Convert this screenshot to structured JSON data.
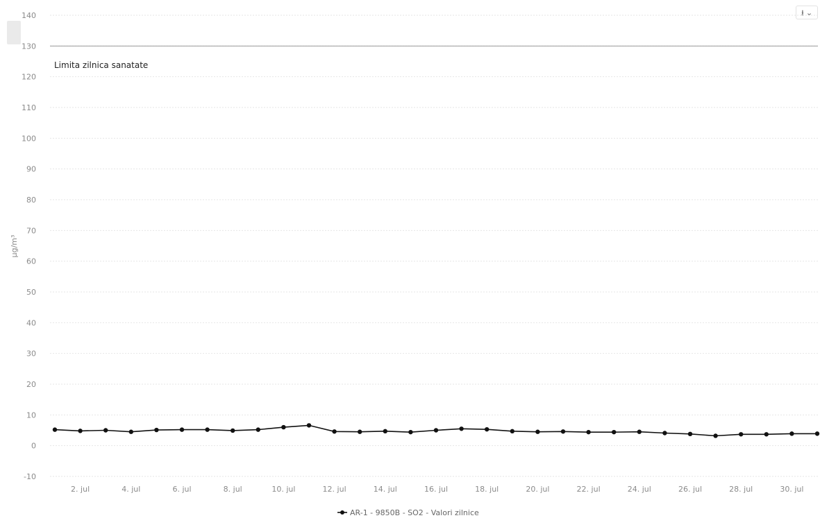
{
  "chart_data": {
    "type": "line",
    "title": "",
    "xlabel": "",
    "ylabel": "µg/m³",
    "ylim": [
      -10,
      140
    ],
    "yticks": [
      -10,
      0,
      10,
      20,
      30,
      40,
      50,
      60,
      70,
      80,
      90,
      100,
      110,
      120,
      130,
      140
    ],
    "xtick_labels": [
      "2. jul",
      "4. jul",
      "6. jul",
      "8. jul",
      "10. jul",
      "12. jul",
      "14. jul",
      "16. jul",
      "18. jul",
      "20. jul",
      "22. jul",
      "24. jul",
      "26. jul",
      "28. jul",
      "30. jul"
    ],
    "grid": true,
    "legend_position": "bottom-center",
    "plot_lines": [
      {
        "label": "Limita zilnica sanatate",
        "value": 125
      }
    ],
    "series": [
      {
        "name": "AR-1 - 9850B - SO2 - Valori zilnice",
        "color": "#111111",
        "x": [
          "1. jul",
          "2. jul",
          "3. jul",
          "4. jul",
          "5. jul",
          "6. jul",
          "7. jul",
          "8. jul",
          "9. jul",
          "10. jul",
          "11. jul",
          "12. jul",
          "13. jul",
          "14. jul",
          "15. jul",
          "16. jul",
          "17. jul",
          "18. jul",
          "19. jul",
          "20. jul",
          "21. jul",
          "22. jul",
          "23. jul",
          "24. jul",
          "25. jul",
          "26. jul",
          "27. jul",
          "28. jul",
          "29. jul",
          "30. jul",
          "31. jul"
        ],
        "values": [
          5.2,
          4.8,
          5.0,
          4.5,
          5.1,
          5.2,
          5.2,
          4.9,
          5.2,
          6.0,
          6.6,
          4.6,
          4.5,
          4.7,
          4.4,
          5.0,
          5.5,
          5.3,
          4.7,
          4.5,
          4.6,
          4.4,
          4.4,
          4.5,
          4.1,
          3.8,
          3.2,
          3.7,
          3.7,
          3.9,
          3.9
        ]
      }
    ]
  },
  "export_menu": {
    "icon": "download-icon",
    "caret": "chevron-down-icon"
  }
}
